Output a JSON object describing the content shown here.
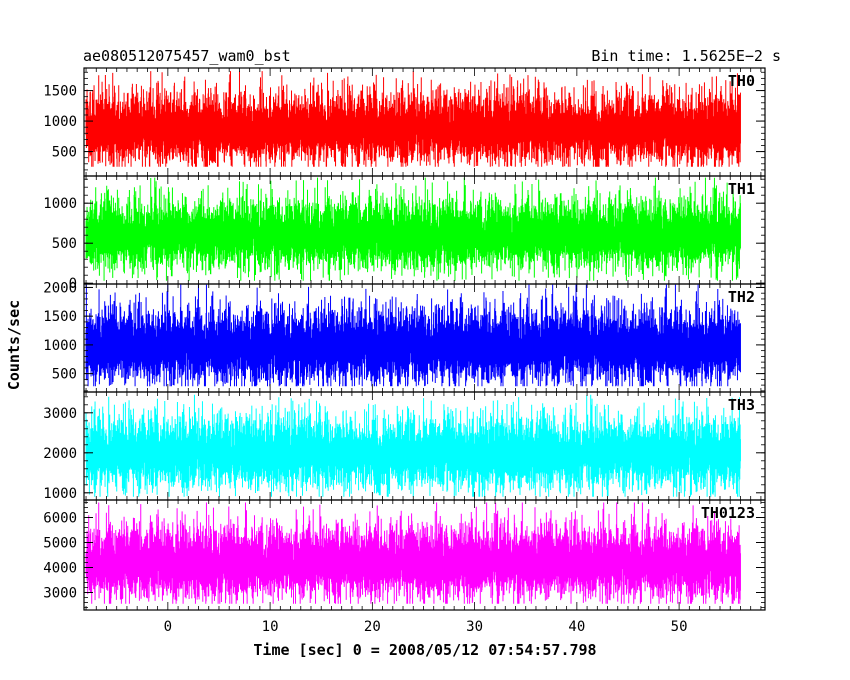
{
  "header": {
    "title": "ae080512075457_wam0_bst",
    "bin_time": "Bin time: 1.5625E−2 s"
  },
  "axes": {
    "xlabel": "Time [sec] 0 = 2008/05/12 07:54:57.798",
    "ylabel": "Counts/sec"
  },
  "chart_data": {
    "type": "line",
    "xlabel": "Time [sec] 0 = 2008/05/12 07:54:57.798",
    "ylabel": "Counts/sec",
    "xlim": [
      -8.2,
      58.4
    ],
    "x_range": [
      -8.0,
      56.0
    ],
    "bin_time_s": 0.015625,
    "x_ticks": [
      0,
      10,
      20,
      30,
      40,
      50
    ],
    "x_tick_labels": [
      "0",
      "10",
      "20",
      "30",
      "40",
      "50"
    ],
    "panels": [
      {
        "name": "TH0",
        "color": "#ff0000",
        "ylim": [
          100,
          1870
        ],
        "y_ticks": [
          500,
          1000,
          1500
        ],
        "y_tick_labels": [
          "500",
          "1000",
          "1500"
        ],
        "mean": 850,
        "fluct_min": 250,
        "fluct_max": 1820
      },
      {
        "name": "TH1",
        "color": "#00ff00",
        "ylim": [
          -10,
          1340
        ],
        "y_ticks": [
          0,
          500,
          1000
        ],
        "y_tick_labels": [
          "0",
          "500",
          "1000"
        ],
        "mean": 590,
        "fluct_min": 30,
        "fluct_max": 1320
      },
      {
        "name": "TH2",
        "color": "#0000ff",
        "ylim": [
          180,
          2060
        ],
        "y_ticks": [
          500,
          1000,
          1500,
          2000
        ],
        "y_tick_labels": [
          "500",
          "1000",
          "1500",
          "2000"
        ],
        "mean": 950,
        "fluct_min": 280,
        "fluct_max": 2050
      },
      {
        "name": "TH3",
        "color": "#00ffff",
        "ylim": [
          820,
          3520
        ],
        "y_ticks": [
          1000,
          2000,
          3000
        ],
        "y_tick_labels": [
          "1000",
          "2000",
          "3000"
        ],
        "mean": 1950,
        "fluct_min": 900,
        "fluct_max": 3450
      },
      {
        "name": "TH0123",
        "color": "#ff00ff",
        "ylim": [
          2300,
          6700
        ],
        "y_ticks": [
          3000,
          4000,
          5000,
          6000
        ],
        "y_tick_labels": [
          "3000",
          "4000",
          "5000",
          "6000"
        ],
        "mean": 4150,
        "fluct_min": 2550,
        "fluct_max": 6600
      }
    ]
  }
}
